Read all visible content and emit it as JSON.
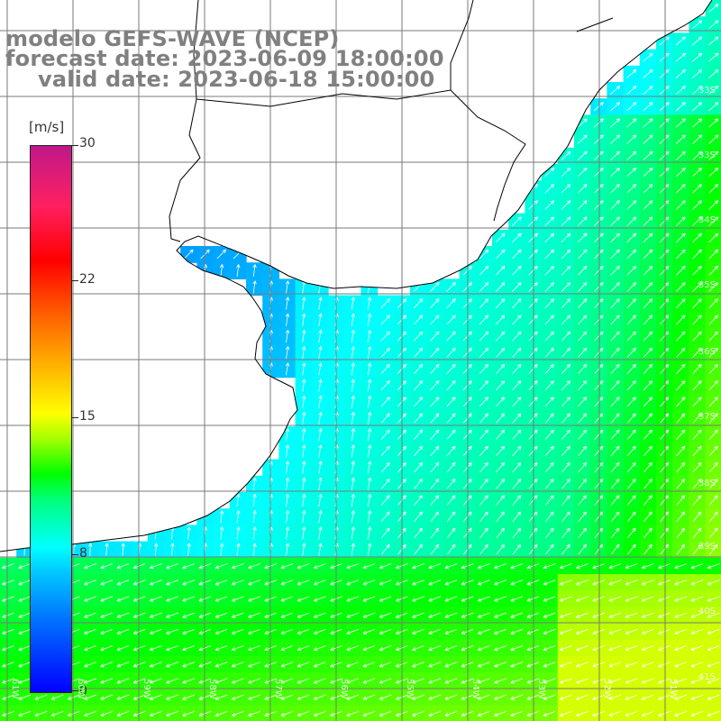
{
  "title": {
    "line1": "modelo GEFS-WAVE (NCEP)",
    "line2": "forecast date: 2023-06-09 18:00:00",
    "line3": "valid date: 2023-06-18 15:00:00"
  },
  "colorbar": {
    "unit": "[m/s]",
    "ticks": [
      "30",
      "22",
      "15",
      "8",
      "0"
    ],
    "stops": [
      {
        "value": 0,
        "color": "#0000ff"
      },
      {
        "value": 8,
        "color": "#00ffff"
      },
      {
        "value": 15,
        "color": "#ffff00"
      },
      {
        "value": 22,
        "color": "#ff6000"
      },
      {
        "value": 30,
        "color": "#c0188a"
      }
    ]
  },
  "lat_labels": [
    "33S",
    "33S",
    "34S",
    "35S",
    "36S",
    "37S",
    "38S",
    "39S",
    "40S",
    "41S"
  ],
  "lon_labels": [
    "61W",
    "60W",
    "59W",
    "58W",
    "57W",
    "56W",
    "55W",
    "54W",
    "53W",
    "52W",
    "51W"
  ],
  "colors": {
    "land": "#ffffff",
    "coast": "#000000",
    "grid": "#7a7a7a",
    "arrows": "#ffffff",
    "title": "#808080"
  },
  "field_description_icon": "wind-arrow-icon"
}
